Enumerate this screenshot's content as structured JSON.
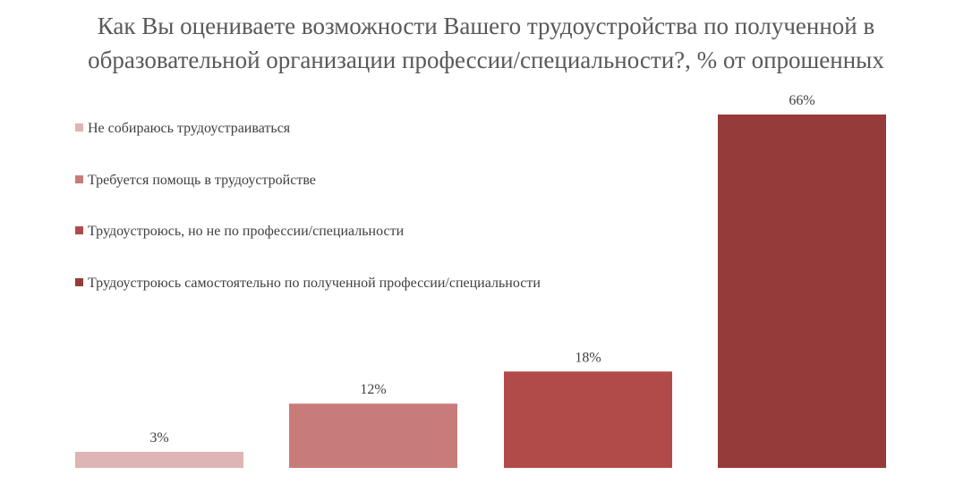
{
  "chart_data": {
    "type": "bar",
    "title": "Как Вы оцениваете возможности Вашего трудоустройства  по полученной в образовательной организации профессии/специальности?,  % от опрошенных",
    "title_lines": [
      "Как Вы оцениваете возможности Вашего трудоустройства  по полученной в",
      "образовательной организации профессии/специальности?,  % от опрошенных"
    ],
    "categories": [
      "Не собираюсь трудоустраиваться",
      "Требуется помощь в трудоустройстве",
      "Трудоустроюсь, но не по профессии/специальности",
      "Трудоустроюсь самостоятельно по полученной профессии/специальности"
    ],
    "values": [
      3,
      12,
      18,
      66
    ],
    "data_labels": [
      "3%",
      "12%",
      "18%",
      "66%"
    ],
    "colors": [
      "#DEB4B4",
      "#C87C7A",
      "#B14B4A",
      "#953C3B"
    ],
    "unit": "%",
    "xlabel": "",
    "ylabel": "",
    "ylim": [
      0,
      66
    ],
    "grid": false,
    "legend_position": "left"
  }
}
